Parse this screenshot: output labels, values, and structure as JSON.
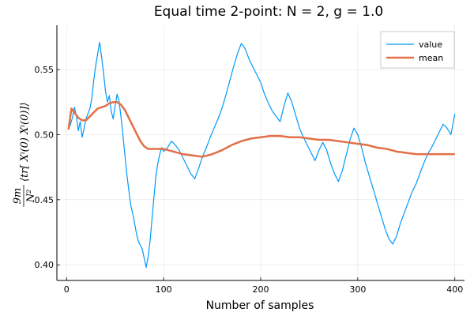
{
  "chart_data": {
    "type": "line",
    "title": "Equal time 2-point: N = 2, g = 1.0",
    "xlabel": "Number of samples",
    "ylabel": {
      "numerator": "9m",
      "denominator": "N²",
      "body": "⟨tr[ Xⁱ(0) Xⁱ(0)]⟩"
    },
    "xlim": [
      -10,
      410
    ],
    "ylim": [
      0.388,
      0.584
    ],
    "xticks": [
      0,
      100,
      200,
      300,
      400
    ],
    "yticks": [
      0.4,
      0.45,
      0.5,
      0.55
    ],
    "ytick_labels": [
      "0.40",
      "0.45",
      "0.50",
      "0.55"
    ],
    "grid": true,
    "legend_position": "top-right",
    "colors": {
      "value": "#009af9",
      "mean": "#e26f46"
    },
    "series": [
      {
        "name": "value",
        "points": [
          [
            2,
            0.504
          ],
          [
            4,
            0.508
          ],
          [
            6,
            0.513
          ],
          [
            8,
            0.521
          ],
          [
            10,
            0.515
          ],
          [
            12,
            0.503
          ],
          [
            14,
            0.51
          ],
          [
            16,
            0.498
          ],
          [
            18,
            0.505
          ],
          [
            20,
            0.512
          ],
          [
            22,
            0.516
          ],
          [
            24,
            0.52
          ],
          [
            26,
            0.528
          ],
          [
            28,
            0.542
          ],
          [
            30,
            0.553
          ],
          [
            32,
            0.562
          ],
          [
            34,
            0.571
          ],
          [
            36,
            0.56
          ],
          [
            38,
            0.548
          ],
          [
            40,
            0.534
          ],
          [
            42,
            0.525
          ],
          [
            44,
            0.53
          ],
          [
            46,
            0.518
          ],
          [
            48,
            0.512
          ],
          [
            50,
            0.522
          ],
          [
            52,
            0.531
          ],
          [
            54,
            0.526
          ],
          [
            56,
            0.514
          ],
          [
            58,
            0.5
          ],
          [
            60,
            0.485
          ],
          [
            62,
            0.47
          ],
          [
            64,
            0.458
          ],
          [
            66,
            0.446
          ],
          [
            68,
            0.44
          ],
          [
            70,
            0.432
          ],
          [
            72,
            0.424
          ],
          [
            74,
            0.418
          ],
          [
            76,
            0.415
          ],
          [
            78,
            0.412
          ],
          [
            80,
            0.405
          ],
          [
            82,
            0.398
          ],
          [
            84,
            0.406
          ],
          [
            86,
            0.418
          ],
          [
            88,
            0.435
          ],
          [
            90,
            0.452
          ],
          [
            92,
            0.468
          ],
          [
            94,
            0.478
          ],
          [
            96,
            0.485
          ],
          [
            98,
            0.49
          ],
          [
            100,
            0.487
          ],
          [
            104,
            0.49
          ],
          [
            108,
            0.495
          ],
          [
            112,
            0.492
          ],
          [
            116,
            0.488
          ],
          [
            120,
            0.482
          ],
          [
            124,
            0.476
          ],
          [
            128,
            0.47
          ],
          [
            132,
            0.466
          ],
          [
            136,
            0.474
          ],
          [
            140,
            0.483
          ],
          [
            144,
            0.49
          ],
          [
            148,
            0.498
          ],
          [
            152,
            0.505
          ],
          [
            156,
            0.512
          ],
          [
            160,
            0.52
          ],
          [
            164,
            0.53
          ],
          [
            168,
            0.541
          ],
          [
            172,
            0.552
          ],
          [
            176,
            0.562
          ],
          [
            180,
            0.57
          ],
          [
            184,
            0.566
          ],
          [
            188,
            0.558
          ],
          [
            192,
            0.552
          ],
          [
            196,
            0.546
          ],
          [
            200,
            0.54
          ],
          [
            204,
            0.531
          ],
          [
            208,
            0.524
          ],
          [
            212,
            0.518
          ],
          [
            216,
            0.514
          ],
          [
            220,
            0.51
          ],
          [
            224,
            0.522
          ],
          [
            228,
            0.532
          ],
          [
            232,
            0.525
          ],
          [
            236,
            0.515
          ],
          [
            240,
            0.505
          ],
          [
            244,
            0.498
          ],
          [
            248,
            0.492
          ],
          [
            252,
            0.486
          ],
          [
            256,
            0.48
          ],
          [
            260,
            0.488
          ],
          [
            264,
            0.494
          ],
          [
            268,
            0.488
          ],
          [
            272,
            0.478
          ],
          [
            276,
            0.47
          ],
          [
            280,
            0.464
          ],
          [
            284,
            0.472
          ],
          [
            288,
            0.484
          ],
          [
            292,
            0.496
          ],
          [
            296,
            0.505
          ],
          [
            300,
            0.5
          ],
          [
            304,
            0.49
          ],
          [
            308,
            0.478
          ],
          [
            312,
            0.468
          ],
          [
            316,
            0.458
          ],
          [
            320,
            0.448
          ],
          [
            324,
            0.438
          ],
          [
            328,
            0.428
          ],
          [
            332,
            0.42
          ],
          [
            336,
            0.416
          ],
          [
            340,
            0.422
          ],
          [
            344,
            0.432
          ],
          [
            348,
            0.44
          ],
          [
            352,
            0.448
          ],
          [
            356,
            0.456
          ],
          [
            360,
            0.462
          ],
          [
            364,
            0.47
          ],
          [
            368,
            0.478
          ],
          [
            372,
            0.485
          ],
          [
            376,
            0.49
          ],
          [
            380,
            0.496
          ],
          [
            384,
            0.502
          ],
          [
            388,
            0.508
          ],
          [
            392,
            0.505
          ],
          [
            396,
            0.5
          ],
          [
            400,
            0.516
          ]
        ]
      },
      {
        "name": "mean",
        "points": [
          [
            2,
            0.504
          ],
          [
            5,
            0.52
          ],
          [
            8,
            0.517
          ],
          [
            12,
            0.513
          ],
          [
            16,
            0.511
          ],
          [
            20,
            0.511
          ],
          [
            24,
            0.514
          ],
          [
            28,
            0.517
          ],
          [
            32,
            0.52
          ],
          [
            36,
            0.521
          ],
          [
            40,
            0.522
          ],
          [
            44,
            0.524
          ],
          [
            48,
            0.525
          ],
          [
            52,
            0.525
          ],
          [
            56,
            0.523
          ],
          [
            60,
            0.519
          ],
          [
            64,
            0.513
          ],
          [
            68,
            0.507
          ],
          [
            72,
            0.501
          ],
          [
            76,
            0.495
          ],
          [
            80,
            0.491
          ],
          [
            84,
            0.489
          ],
          [
            90,
            0.489
          ],
          [
            100,
            0.489
          ],
          [
            110,
            0.487
          ],
          [
            120,
            0.485
          ],
          [
            130,
            0.484
          ],
          [
            140,
            0.483
          ],
          [
            150,
            0.485
          ],
          [
            160,
            0.488
          ],
          [
            170,
            0.492
          ],
          [
            180,
            0.495
          ],
          [
            190,
            0.497
          ],
          [
            200,
            0.498
          ],
          [
            210,
            0.499
          ],
          [
            220,
            0.499
          ],
          [
            230,
            0.498
          ],
          [
            240,
            0.498
          ],
          [
            250,
            0.497
          ],
          [
            260,
            0.496
          ],
          [
            270,
            0.496
          ],
          [
            280,
            0.495
          ],
          [
            290,
            0.494
          ],
          [
            300,
            0.493
          ],
          [
            310,
            0.492
          ],
          [
            320,
            0.49
          ],
          [
            330,
            0.489
          ],
          [
            340,
            0.487
          ],
          [
            350,
            0.486
          ],
          [
            360,
            0.485
          ],
          [
            370,
            0.485
          ],
          [
            380,
            0.485
          ],
          [
            390,
            0.485
          ],
          [
            400,
            0.485
          ]
        ]
      }
    ]
  }
}
